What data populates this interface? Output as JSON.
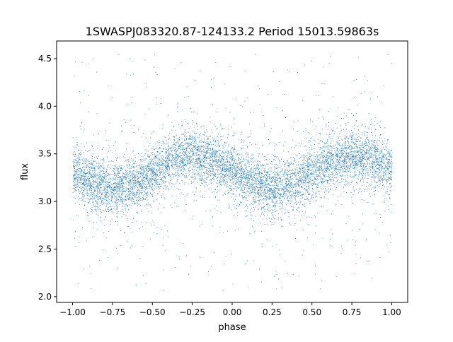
{
  "chart_data": {
    "type": "scatter",
    "title": "1SWASPJ083320.87-124133.2 Period 15013.59863s",
    "xlabel": "phase",
    "ylabel": "flux",
    "xlim": [
      -1.1,
      1.1
    ],
    "ylim": [
      1.94,
      4.685
    ],
    "xticks": [
      -1.0,
      -0.75,
      -0.5,
      -0.25,
      0.0,
      0.25,
      0.5,
      0.75,
      1.0
    ],
    "xtick_labels": [
      "−1.00",
      "−0.75",
      "−0.50",
      "−0.25",
      "0.00",
      "0.25",
      "0.50",
      "0.75",
      "1.00"
    ],
    "yticks": [
      2.0,
      2.5,
      3.0,
      3.5,
      4.0,
      4.5
    ],
    "ytick_labels": [
      "2.0",
      "2.5",
      "3.0",
      "3.5",
      "4.0",
      "4.5"
    ],
    "grid": false,
    "marker_color": "#1f77b4",
    "x_range_of_points": [
      -1.0,
      1.0
    ],
    "binned_trend": {
      "phase": [
        -1.0,
        -0.875,
        -0.75,
        -0.625,
        -0.5,
        -0.375,
        -0.25,
        -0.125,
        0.0,
        0.125,
        0.25,
        0.375,
        0.5,
        0.625,
        0.75,
        0.875,
        1.0
      ],
      "flux": [
        3.3,
        3.2,
        3.13,
        3.18,
        3.3,
        3.43,
        3.5,
        3.44,
        3.33,
        3.2,
        3.13,
        3.18,
        3.3,
        3.43,
        3.49,
        3.44,
        3.33
      ]
    },
    "scatter_spread": 0.17,
    "outlier_range": [
      2.05,
      4.55
    ]
  }
}
